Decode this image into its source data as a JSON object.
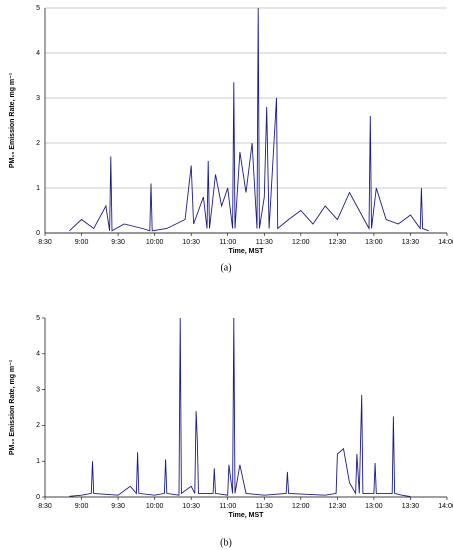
{
  "chart_data": [
    {
      "type": "line",
      "caption": "(a)",
      "xlabel": "Time, MST",
      "ylabel": "PM₁₀ Emission Rate, mg m⁻¹",
      "xlim": [
        510,
        840
      ],
      "ylim": [
        0,
        5
      ],
      "yticks": [
        0,
        1,
        2,
        3,
        4,
        5
      ],
      "grid": true,
      "xticks": [
        {
          "value": 510,
          "label": "8:30"
        },
        {
          "value": 540,
          "label": "9:00"
        },
        {
          "value": 570,
          "label": "9:30"
        },
        {
          "value": 600,
          "label": "10:00"
        },
        {
          "value": 630,
          "label": "10:30"
        },
        {
          "value": 660,
          "label": "11:00"
        },
        {
          "value": 690,
          "label": "11:30"
        },
        {
          "value": 720,
          "label": "12:00"
        },
        {
          "value": 750,
          "label": "12:30"
        },
        {
          "value": 780,
          "label": "13:00"
        },
        {
          "value": 810,
          "label": "13:30"
        },
        {
          "value": 840,
          "label": "14:00"
        }
      ],
      "series": [
        {
          "color": "#1c1c86",
          "x": [
            530,
            540,
            550,
            560,
            563,
            564,
            565,
            575,
            590,
            596,
            597,
            598,
            610,
            625,
            630,
            632,
            640,
            643,
            644,
            645,
            650,
            655,
            660,
            664,
            665,
            666,
            670,
            675,
            680,
            684,
            685,
            686,
            690,
            692,
            694,
            700,
            701,
            710,
            720,
            730,
            740,
            750,
            760,
            770,
            776,
            777,
            778,
            782,
            790,
            800,
            810,
            818,
            819,
            820,
            825
          ],
          "values": [
            0.05,
            0.3,
            0.1,
            0.6,
            0.05,
            1.7,
            0.05,
            0.2,
            0.1,
            0.05,
            1.1,
            0.05,
            0.1,
            0.3,
            1.5,
            0.2,
            0.8,
            0.1,
            1.6,
            0.1,
            1.3,
            0.6,
            1.0,
            0.1,
            3.35,
            0.1,
            1.8,
            0.9,
            2.0,
            0.1,
            5.0,
            0.1,
            0.8,
            2.8,
            0.1,
            3.0,
            0.1,
            0.3,
            0.5,
            0.2,
            0.6,
            0.3,
            0.9,
            0.4,
            0.1,
            2.6,
            0.1,
            1.0,
            0.3,
            0.2,
            0.4,
            0.1,
            1.0,
            0.1,
            0.05
          ]
        }
      ]
    },
    {
      "type": "line",
      "caption": "(b)",
      "xlabel": "Time, MST",
      "ylabel": "PM₁₀ Emission Rate, mg m⁻¹",
      "xlim": [
        510,
        840
      ],
      "ylim": [
        0,
        5
      ],
      "yticks": [
        0,
        1,
        2,
        3,
        4,
        5
      ],
      "grid": false,
      "xticks": [
        {
          "value": 510,
          "label": "8:30"
        },
        {
          "value": 540,
          "label": "9:00"
        },
        {
          "value": 570,
          "label": "9:30"
        },
        {
          "value": 600,
          "label": "10:00"
        },
        {
          "value": 630,
          "label": "10:30"
        },
        {
          "value": 660,
          "label": "11:00"
        },
        {
          "value": 690,
          "label": "11:30"
        },
        {
          "value": 720,
          "label": "12:00"
        },
        {
          "value": 750,
          "label": "12:30"
        },
        {
          "value": 780,
          "label": "13:00"
        },
        {
          "value": 810,
          "label": "13:30"
        },
        {
          "value": 840,
          "label": "14:00"
        }
      ],
      "series": [
        {
          "color": "#1c1c86",
          "x": [
            530,
            540,
            548,
            549,
            550,
            570,
            580,
            585,
            586,
            587,
            600,
            608,
            609,
            610,
            620,
            621,
            622,
            630,
            633,
            634,
            635,
            636,
            648,
            649,
            650,
            660,
            661,
            664,
            665,
            666,
            670,
            675,
            690,
            708,
            709,
            710,
            740,
            749,
            750,
            755,
            760,
            765,
            766,
            768,
            770,
            771,
            780,
            781,
            782,
            795,
            796,
            797,
            803,
            810
          ],
          "values": [
            0.02,
            0.05,
            0.1,
            1.0,
            0.1,
            0.05,
            0.3,
            0.1,
            1.25,
            0.1,
            0.05,
            0.1,
            1.05,
            0.1,
            0.05,
            5.0,
            0.1,
            0.3,
            0.1,
            2.4,
            1.6,
            0.1,
            0.1,
            0.8,
            0.1,
            0.05,
            0.9,
            0.1,
            5.0,
            0.1,
            0.9,
            0.1,
            0.05,
            0.1,
            0.7,
            0.1,
            0.05,
            0.1,
            1.2,
            1.35,
            0.4,
            0.1,
            1.2,
            0.1,
            2.85,
            0.1,
            0.1,
            0.95,
            0.1,
            0.1,
            2.25,
            0.1,
            0.05,
            0.01
          ]
        }
      ]
    }
  ]
}
